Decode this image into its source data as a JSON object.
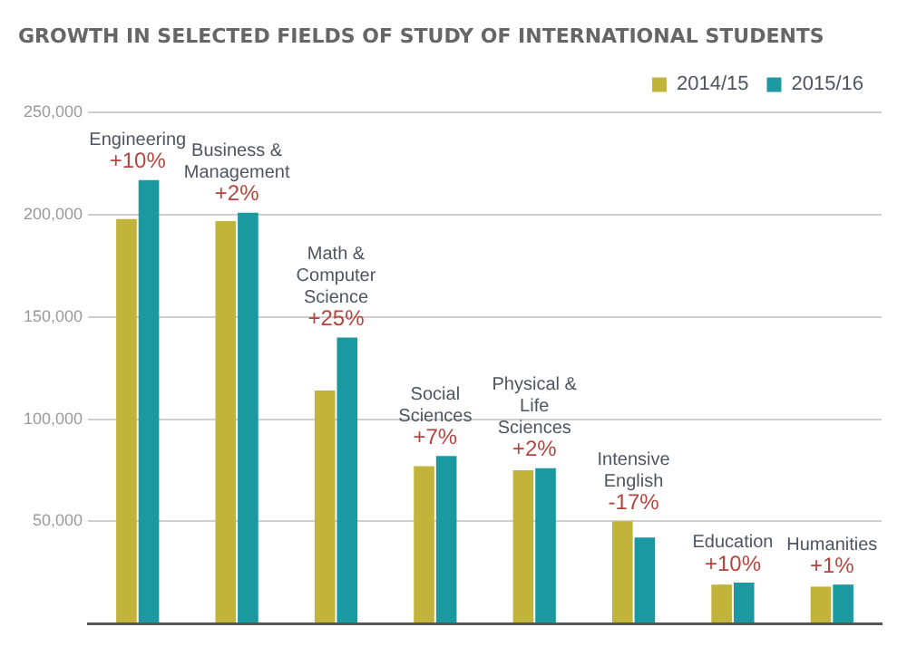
{
  "chart_data": {
    "type": "bar",
    "title": "GROWTH IN SELECTED FIELDS OF STUDY OF INTERNATIONAL STUDENTS",
    "categories": [
      "Engineering",
      "Business & Management",
      "Math & Computer Science",
      "Social Sciences",
      "Physical & Life Sciences",
      "Intensive English",
      "Education",
      "Humanities"
    ],
    "series": [
      {
        "name": "2014/15",
        "color": "#c2b43a",
        "values": [
          198000,
          197000,
          114000,
          77000,
          75000,
          50000,
          19000,
          18000
        ]
      },
      {
        "name": "2015/16",
        "color": "#1a9aa0",
        "values": [
          217000,
          201000,
          140000,
          82000,
          76000,
          42000,
          20000,
          19000
        ]
      }
    ],
    "ylim": [
      0,
      250000
    ],
    "yticks": [
      {
        "value": 0,
        "label": null
      },
      {
        "value": 50000,
        "label": "50,000"
      },
      {
        "value": 100000,
        "label": "100,000"
      },
      {
        "value": 150000,
        "label": "150,000"
      },
      {
        "value": 200000,
        "label": "200,000"
      },
      {
        "value": 250000,
        "label": "250,000"
      }
    ],
    "grid": "y",
    "legend": "top right",
    "tick_labels": "y",
    "annotations": [
      {
        "text": "+10%",
        "x": "Engineering",
        "y": 217000
      },
      {
        "text": "+2%",
        "x": "Business & Management",
        "y": 201000
      },
      {
        "text": "+25%",
        "x": "Math & Computer Science",
        "y": 140000
      },
      {
        "text": "+7%",
        "x": "Social Sciences",
        "y": 82000
      },
      {
        "text": "+2%",
        "x": "Physical & Life Sciences",
        "y": 76000
      },
      {
        "text": "-17%",
        "x": "Intensive English",
        "y": 50000
      },
      {
        "text": "+10%",
        "x": "Education",
        "y": 20000
      },
      {
        "text": "+1%",
        "x": "Humanities",
        "y": 19000
      }
    ]
  }
}
